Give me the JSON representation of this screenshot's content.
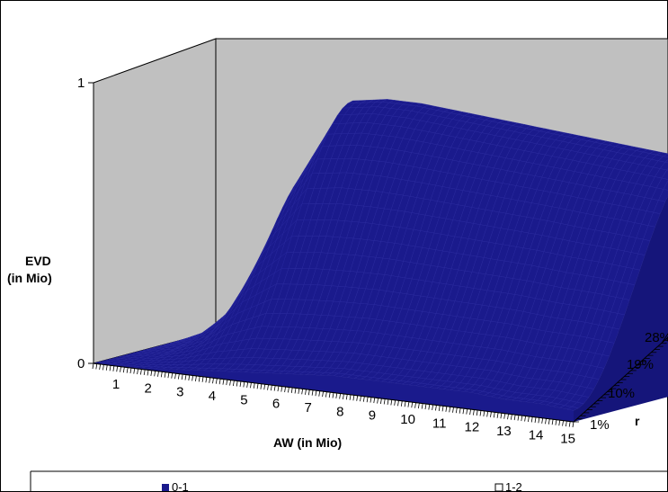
{
  "chart_data": {
    "type": "surface",
    "title": "",
    "zlabel_line1": "EVD",
    "zlabel_line2": "(in Mio)",
    "xlabel": "AW (in Mio)",
    "ylabel": "r",
    "x_ticks": [
      "1",
      "2",
      "3",
      "4",
      "5",
      "6",
      "7",
      "8",
      "9",
      "10",
      "11",
      "12",
      "13",
      "14",
      "15"
    ],
    "y_ticks": [
      "1%",
      "10%",
      "19%",
      "28%"
    ],
    "z_ticks": [
      "0",
      "1"
    ],
    "zlim": [
      0,
      1
    ],
    "legend": [
      {
        "label": "0-1",
        "color": "#1a1a8c",
        "filled": true
      },
      {
        "label": "1-2",
        "color": "#ffffff",
        "filled": false
      }
    ],
    "surface_color": "#1a1a8c",
    "x": [
      1,
      2,
      3,
      4,
      5,
      6,
      7,
      8,
      9,
      10,
      11,
      12,
      13,
      14,
      15
    ],
    "y_front_1pct": [
      0.0,
      0.0,
      0.01,
      0.02,
      0.03,
      0.04,
      0.05,
      0.06,
      0.06,
      0.06,
      0.06,
      0.06,
      0.05,
      0.05,
      0.04
    ],
    "y_back_28pct": [
      0.0,
      0.07,
      0.25,
      0.65,
      0.88,
      0.9,
      0.9,
      0.89,
      0.88,
      0.87,
      0.86,
      0.85,
      0.84,
      0.83,
      0.82
    ]
  }
}
